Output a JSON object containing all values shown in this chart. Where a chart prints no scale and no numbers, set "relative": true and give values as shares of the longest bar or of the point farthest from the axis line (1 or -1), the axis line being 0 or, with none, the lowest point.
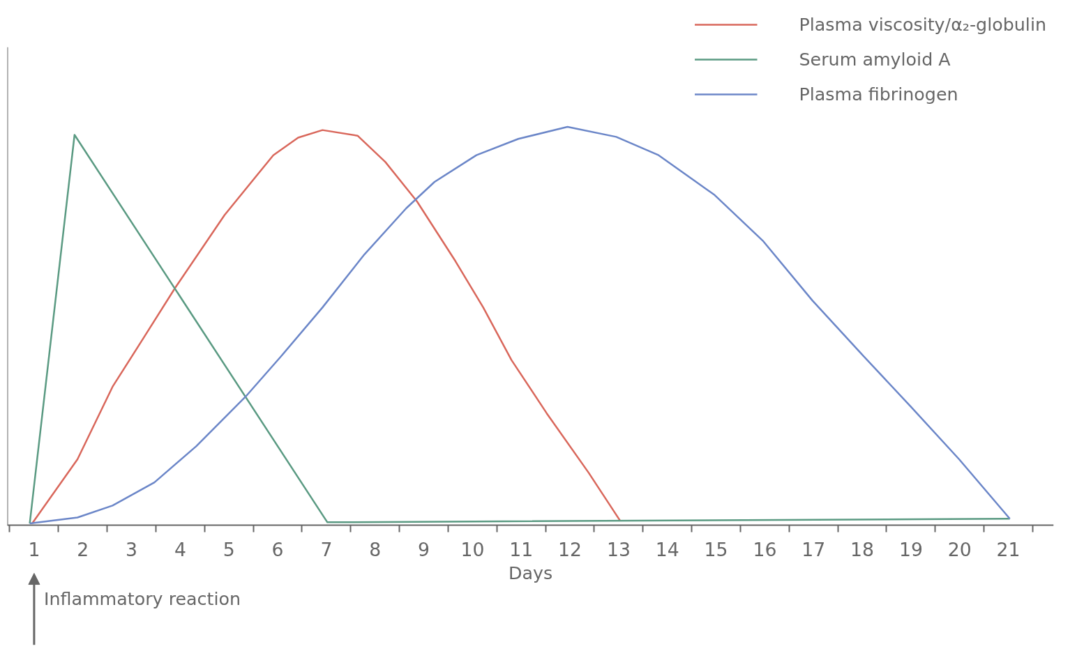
{
  "chart_data": {
    "type": "line",
    "relative": true,
    "xlabel": "Days",
    "xlim": [
      0.45,
      21.93
    ],
    "xticks": [
      {
        "value": 0.5,
        "label": null
      },
      1,
      {
        "value": 1.5,
        "label": null
      },
      2,
      {
        "value": 2.5,
        "label": null
      },
      3,
      {
        "value": 3.5,
        "label": null
      },
      4,
      {
        "value": 4.5,
        "label": null
      },
      5,
      {
        "value": 5.5,
        "label": null
      },
      6,
      {
        "value": 6.5,
        "label": null
      },
      7,
      {
        "value": 7.5,
        "label": null
      },
      8,
      {
        "value": 8.5,
        "label": null
      },
      9,
      {
        "value": 9.5,
        "label": null
      },
      10,
      {
        "value": 10.5,
        "label": null
      },
      11,
      {
        "value": 11.5,
        "label": null
      },
      12,
      {
        "value": 12.5,
        "label": null
      },
      13,
      {
        "value": 13.5,
        "label": null
      },
      14,
      {
        "value": 14.5,
        "label": null
      },
      15,
      {
        "value": 15.5,
        "label": null
      },
      16,
      {
        "value": 16.5,
        "label": null
      },
      17,
      {
        "value": 17.5,
        "label": null
      },
      18,
      {
        "value": 18.5,
        "label": null
      },
      19,
      {
        "value": 19.5,
        "label": null
      },
      20,
      {
        "value": 20.5,
        "label": null
      },
      21,
      {
        "value": 21.5,
        "label": null
      }
    ],
    "legend": "top right",
    "grid": false,
    "marker": "none",
    "line_style": "solid",
    "annotations": [
      "Inflammatory reaction"
    ],
    "series": [
      {
        "name": "Plasma viscosity/α₂-globulin",
        "color": "#d9675b",
        "x": [
          0.96,
          1.89,
          2.61,
          3.26,
          3.9,
          4.91,
          5.91,
          6.42,
          6.92,
          7.64,
          8.21,
          8.86,
          9.65,
          10.22,
          10.8,
          11.52,
          12.38,
          13.03
        ],
        "values": [
          0.005,
          0.166,
          0.348,
          0.473,
          0.597,
          0.779,
          0.929,
          0.973,
          0.992,
          0.978,
          0.912,
          0.813,
          0.663,
          0.547,
          0.415,
          0.282,
          0.133,
          0.012
        ]
      },
      {
        "name": "Serum amyloid A",
        "color": "#5a9a82",
        "x": [
          0.91,
          1.83,
          7.02,
          21.03
        ],
        "values": [
          0.005,
          0.98,
          0.008,
          0.017
        ]
      },
      {
        "name": "Plasma fibrinogen",
        "color": "#6b86c8",
        "x": [
          0.91,
          1.89,
          2.61,
          3.47,
          4.33,
          5.34,
          6.06,
          6.92,
          7.78,
          8.64,
          9.22,
          10.08,
          10.94,
          11.95,
          12.95,
          13.82,
          14.97,
          15.97,
          16.98,
          17.98,
          18.99,
          19.99,
          21.03
        ],
        "values": [
          0.005,
          0.02,
          0.05,
          0.108,
          0.199,
          0.323,
          0.423,
          0.547,
          0.68,
          0.796,
          0.862,
          0.929,
          0.97,
          1,
          0.975,
          0.929,
          0.829,
          0.713,
          0.564,
          0.431,
          0.299,
          0.166,
          0.017
        ]
      }
    ]
  }
}
